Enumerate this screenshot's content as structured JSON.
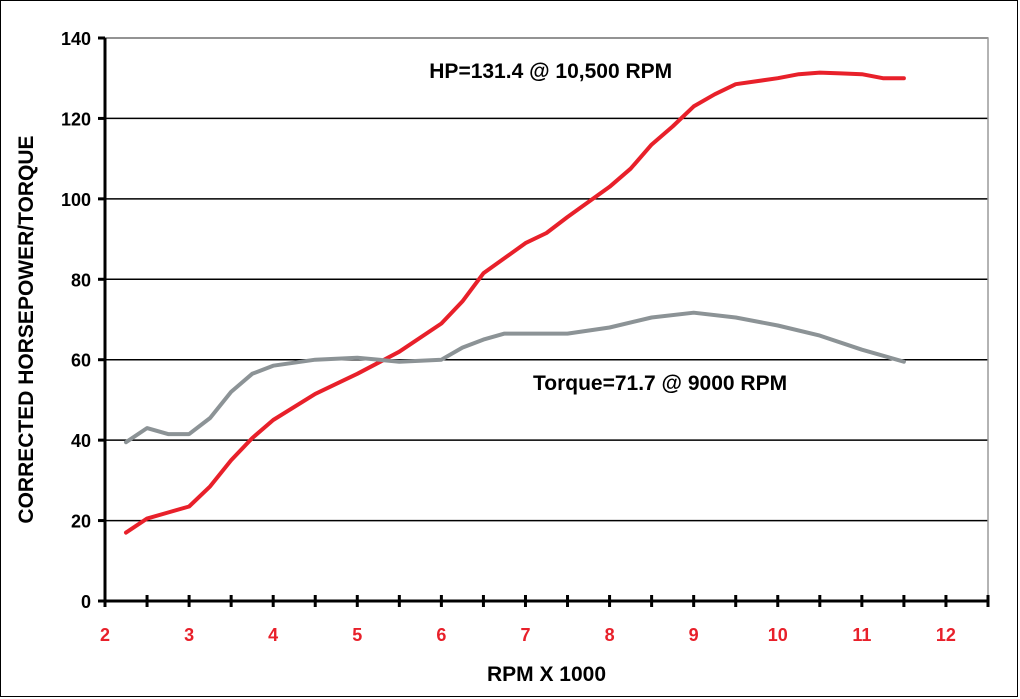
{
  "chart_data": {
    "type": "line",
    "title": "",
    "xlabel": "RPM X 1000",
    "ylabel": "CORRECTED HORSEPOWER/TORQUE",
    "xlim": [
      2,
      12.5
    ],
    "ylim": [
      0,
      140
    ],
    "x_ticks": [
      "2",
      "3",
      "4",
      "5",
      "6",
      "7",
      "8",
      "9",
      "10",
      "11",
      "12"
    ],
    "y_ticks": [
      "0",
      "20",
      "40",
      "60",
      "80",
      "100",
      "120",
      "140"
    ],
    "grid": "horizontal",
    "colors": {
      "hp": "#e8202a",
      "torque": "#8c9396",
      "x_tick_labels": "#e8202a",
      "y_tick_labels": "#000000"
    },
    "series": [
      {
        "key": "hp",
        "points": [
          [
            2.25,
            17
          ],
          [
            2.5,
            20.5
          ],
          [
            2.75,
            22
          ],
          [
            3.0,
            23.5
          ],
          [
            3.25,
            28.5
          ],
          [
            3.5,
            35
          ],
          [
            3.75,
            40.5
          ],
          [
            4.0,
            45
          ],
          [
            4.5,
            51.5
          ],
          [
            5.0,
            56.5
          ],
          [
            5.5,
            62
          ],
          [
            6.0,
            69
          ],
          [
            6.25,
            74.5
          ],
          [
            6.5,
            81.5
          ],
          [
            7.0,
            89
          ],
          [
            7.25,
            91.5
          ],
          [
            7.5,
            95.5
          ],
          [
            8.0,
            103
          ],
          [
            8.25,
            107.5
          ],
          [
            8.5,
            113.5
          ],
          [
            8.75,
            118
          ],
          [
            9.0,
            123
          ],
          [
            9.25,
            126
          ],
          [
            9.5,
            128.5
          ],
          [
            10.0,
            130
          ],
          [
            10.25,
            131
          ],
          [
            10.5,
            131.4
          ],
          [
            10.75,
            131.2
          ],
          [
            11.0,
            131
          ],
          [
            11.25,
            130
          ],
          [
            11.5,
            130
          ]
        ]
      },
      {
        "key": "torque",
        "points": [
          [
            2.25,
            39.5
          ],
          [
            2.5,
            43
          ],
          [
            2.75,
            41.5
          ],
          [
            3.0,
            41.5
          ],
          [
            3.25,
            45.5
          ],
          [
            3.5,
            52
          ],
          [
            3.75,
            56.5
          ],
          [
            4.0,
            58.5
          ],
          [
            4.5,
            60
          ],
          [
            5.0,
            60.5
          ],
          [
            5.5,
            59.5
          ],
          [
            6.0,
            60
          ],
          [
            6.25,
            63
          ],
          [
            6.5,
            65
          ],
          [
            6.75,
            66.5
          ],
          [
            7.0,
            66.5
          ],
          [
            7.5,
            66.5
          ],
          [
            8.0,
            68
          ],
          [
            8.5,
            70.5
          ],
          [
            9.0,
            71.7
          ],
          [
            9.5,
            70.5
          ],
          [
            10.0,
            68.5
          ],
          [
            10.5,
            66
          ],
          [
            11.0,
            62.5
          ],
          [
            11.5,
            59.5
          ]
        ]
      }
    ],
    "annotations": [
      {
        "key": "hp_peak",
        "text": "HP=131.4 @ 10,500 RPM",
        "x": 7.3,
        "y": 130
      },
      {
        "key": "torque_peak",
        "text": "Torque=71.7 @ 9000 RPM",
        "x": 8.6,
        "y": 52.5
      }
    ]
  }
}
